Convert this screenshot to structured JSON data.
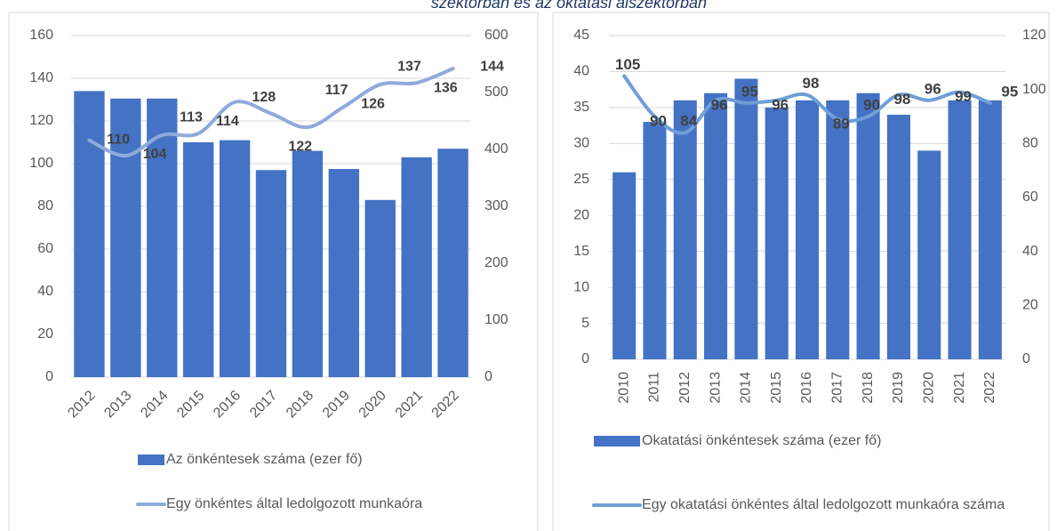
{
  "title": "szektorban és az oktatási alszektorban",
  "chart_data": [
    {
      "type": "bar_line",
      "categories": [
        "2012",
        "2013",
        "2014",
        "2015",
        "2016",
        "2017",
        "2018",
        "2019",
        "2020",
        "2021",
        "2022"
      ],
      "series": [
        {
          "name": "Az önkéntesek száma (ezer fő)",
          "type": "bar",
          "color": "#4472c4",
          "values": [
            134,
            130.5,
            130.5,
            110,
            111,
            97,
            106,
            97.5,
            83,
            103,
            107
          ]
        },
        {
          "name": "Egy önkéntes által ledolgozott munkaóra",
          "type": "line",
          "axis": "y2",
          "color": "#8faadc",
          "values": [
            416,
            389,
            425,
            428,
            483,
            463,
            439,
            475,
            514,
            517,
            542
          ]
        }
      ],
      "annotations": [
        110,
        104,
        113,
        114,
        128,
        122,
        117,
        126,
        137,
        136,
        144
      ],
      "ylim": [
        0,
        160
      ],
      "yticks": [
        0,
        20,
        40,
        60,
        80,
        100,
        120,
        140,
        160
      ],
      "y2lim": [
        0,
        600
      ],
      "y2ticks": [
        0,
        100,
        200,
        300,
        400,
        500,
        600
      ],
      "grid": true
    },
    {
      "type": "bar_line",
      "categories": [
        "2010",
        "2011",
        "2012",
        "2013",
        "2014",
        "2015",
        "2016",
        "2017",
        "2018",
        "2019",
        "2020",
        "2021",
        "2022"
      ],
      "series": [
        {
          "name": "Okatatási önkéntesek száma (ezer fő)",
          "type": "bar",
          "color": "#4472c4",
          "values": [
            26,
            33,
            36,
            37,
            39,
            35,
            36,
            36,
            37,
            34,
            29,
            36,
            36
          ]
        },
        {
          "name": "Egy okatatási önkéntes által ledolgozott munkaóra száma",
          "type": "line",
          "axis": "y2",
          "color": "#6f9fd8",
          "values": [
            105,
            90,
            84,
            96,
            95,
            96,
            98,
            89,
            90,
            98,
            96,
            99,
            95
          ]
        }
      ],
      "ylim": [
        0,
        45
      ],
      "yticks": [
        0,
        5,
        10,
        15,
        20,
        25,
        30,
        35,
        40,
        45
      ],
      "y2lim": [
        0,
        120
      ],
      "y2ticks": [
        0,
        20,
        40,
        60,
        80,
        100,
        120
      ],
      "grid": true
    }
  ]
}
